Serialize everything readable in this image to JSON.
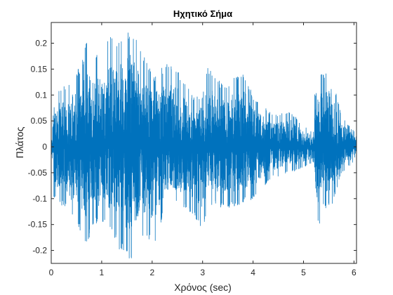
{
  "chart_data": {
    "type": "line",
    "title": "Ηχητικό Σήμα",
    "xlabel": "Χρόνος (sec)",
    "ylabel": "Πλάτος",
    "xlim": [
      0,
      6.05
    ],
    "ylim": [
      -0.225,
      0.24
    ],
    "xticks": [
      "0",
      "1",
      "2",
      "3",
      "4",
      "5",
      "6"
    ],
    "yticks": [
      "-0.2",
      "-0.15",
      "-0.1",
      "-0.05",
      "0",
      "0.05",
      "0.1",
      "0.15",
      "0.2"
    ],
    "grid": false,
    "line_color": "#0072bd",
    "series": [
      {
        "envelope_time": [
          0,
          0.05,
          0.3,
          0.6,
          0.7,
          0.85,
          1.2,
          1.35,
          1.6,
          1.75,
          2.05,
          2.25,
          2.45,
          2.8,
          3.0,
          3.1,
          3.4,
          3.8,
          4.0,
          4.4,
          4.75,
          5.0,
          5.2,
          5.24,
          5.3,
          5.4,
          5.55,
          5.75,
          6.0,
          6.05
        ],
        "envelope_max": [
          0,
          0.11,
          0.12,
          0.16,
          0.21,
          0.17,
          0.22,
          0.21,
          0.24,
          0.19,
          0.14,
          0.16,
          0.16,
          0.1,
          0.1,
          0.16,
          0.12,
          0.15,
          0.1,
          0.06,
          0.07,
          0.04,
          0.03,
          0.21,
          0.14,
          0.14,
          0.15,
          0.06,
          0.03,
          0.02
        ],
        "envelope_min": [
          0,
          -0.1,
          -0.12,
          -0.17,
          -0.19,
          -0.15,
          -0.16,
          -0.2,
          -0.22,
          -0.17,
          -0.19,
          -0.12,
          -0.11,
          -0.13,
          -0.17,
          -0.11,
          -0.12,
          -0.11,
          -0.1,
          -0.06,
          -0.05,
          -0.04,
          -0.03,
          -0.13,
          -0.16,
          -0.12,
          -0.12,
          -0.05,
          -0.03,
          -0.02
        ]
      }
    ]
  }
}
